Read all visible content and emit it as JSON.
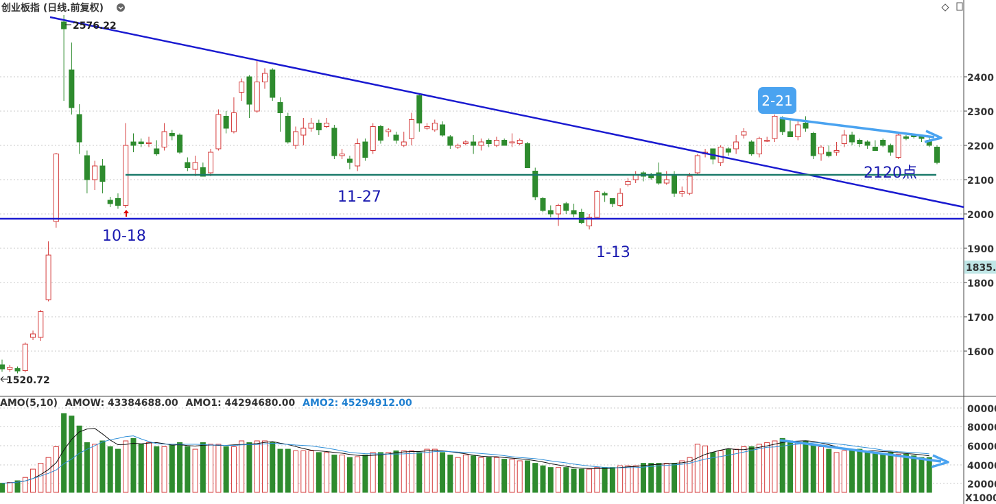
{
  "header": {
    "title": "创业板指 (日线.前复权)",
    "amo_label": "AMO(5,10)",
    "amow": "AMOW: 43384688.00",
    "amo1": "AMO1: 44294680.00",
    "amo2": "AMO2: 45294912.00"
  },
  "price_axis": {
    "ticks": [
      "2400",
      "2300",
      "2200",
      "2100",
      "2000",
      "1900",
      "1800",
      "1700",
      "1600"
    ],
    "current_value": "1835."
  },
  "volume_axis": {
    "ticks": [
      "00000",
      "80000",
      "60000",
      "40000",
      "20000"
    ],
    "unit": "X1000"
  },
  "annotations": {
    "high": "2576.22",
    "low": "1520.72",
    "d1": "10-18",
    "d2": "11-27",
    "d3": "1-13",
    "d4": "2-21",
    "level": "2120点"
  },
  "colors": {
    "up": "#d43a3a",
    "down": "#2e8b2e",
    "trendline": "#1a1ad0",
    "support": "#1a7a6a",
    "arrow": "#4aa3f0",
    "badge": "#4aa3f0",
    "ma1": "#111111",
    "ma2": "#2f8fd8"
  },
  "chart_data": {
    "type": "candlestick",
    "y_range": [
      1460,
      2640
    ],
    "candles": [
      [
        1560,
        1548,
        1575,
        1540
      ],
      [
        1547,
        1553,
        1560,
        1540
      ],
      [
        1549,
        1542,
        1555,
        1535
      ],
      [
        1543,
        1620,
        1625,
        1538
      ],
      [
        1640,
        1650,
        1660,
        1632
      ],
      [
        1640,
        1715,
        1720,
        1630
      ],
      [
        1750,
        1880,
        1920,
        1745
      ],
      [
        1978,
        2175,
        2178,
        1960
      ],
      [
        2560,
        2540,
        2580,
        2330
      ],
      [
        2420,
        2310,
        2500,
        2290
      ],
      [
        2290,
        2210,
        2320,
        2175
      ],
      [
        2170,
        2100,
        2185,
        2060
      ],
      [
        2100,
        2140,
        2155,
        2070
      ],
      [
        2140,
        2095,
        2160,
        2060
      ],
      [
        2040,
        2030,
        2050,
        2020
      ],
      [
        2045,
        2025,
        2060,
        2015
      ],
      [
        2025,
        2200,
        2265,
        2018
      ],
      [
        2210,
        2200,
        2235,
        2180
      ],
      [
        2210,
        2205,
        2220,
        2195
      ],
      [
        2205,
        2208,
        2225,
        2195
      ],
      [
        2190,
        2175,
        2215,
        2170
      ],
      [
        2195,
        2240,
        2265,
        2185
      ],
      [
        2235,
        2228,
        2245,
        2215
      ],
      [
        2230,
        2180,
        2235,
        2175
      ],
      [
        2150,
        2135,
        2165,
        2125
      ],
      [
        2130,
        2150,
        2170,
        2110
      ],
      [
        2135,
        2110,
        2150,
        2110
      ],
      [
        2120,
        2180,
        2190,
        2110
      ],
      [
        2190,
        2290,
        2305,
        2185
      ],
      [
        2285,
        2250,
        2300,
        2235
      ],
      [
        2240,
        2295,
        2340,
        2235
      ],
      [
        2355,
        2385,
        2395,
        2330
      ],
      [
        2400,
        2320,
        2405,
        2280
      ],
      [
        2300,
        2385,
        2450,
        2295
      ],
      [
        2385,
        2410,
        2425,
        2365
      ],
      [
        2420,
        2340,
        2425,
        2330
      ],
      [
        2325,
        2295,
        2340,
        2240
      ],
      [
        2285,
        2210,
        2295,
        2205
      ],
      [
        2200,
        2240,
        2255,
        2190
      ],
      [
        2230,
        2250,
        2280,
        2200
      ],
      [
        2250,
        2265,
        2280,
        2240
      ],
      [
        2265,
        2245,
        2275,
        2230
      ],
      [
        2255,
        2265,
        2280,
        2250
      ],
      [
        2250,
        2170,
        2260,
        2160
      ],
      [
        2170,
        2175,
        2190,
        2160
      ],
      [
        2160,
        2150,
        2170,
        2130
      ],
      [
        2140,
        2205,
        2220,
        2125
      ],
      [
        2210,
        2165,
        2220,
        2155
      ],
      [
        2185,
        2255,
        2265,
        2175
      ],
      [
        2255,
        2215,
        2260,
        2205
      ],
      [
        2240,
        2245,
        2250,
        2225
      ],
      [
        2230,
        2215,
        2240,
        2205
      ],
      [
        2200,
        2210,
        2240,
        2195
      ],
      [
        2220,
        2275,
        2295,
        2200
      ],
      [
        2345,
        2265,
        2350,
        2240
      ],
      [
        2250,
        2255,
        2265,
        2245
      ],
      [
        2245,
        2265,
        2275,
        2240
      ],
      [
        2260,
        2230,
        2270,
        2225
      ],
      [
        2225,
        2200,
        2230,
        2190
      ],
      [
        2195,
        2200,
        2205,
        2190
      ],
      [
        2205,
        2210,
        2215,
        2200
      ],
      [
        2210,
        2200,
        2230,
        2175
      ],
      [
        2200,
        2210,
        2220,
        2185
      ],
      [
        2215,
        2205,
        2220,
        2195
      ],
      [
        2200,
        2215,
        2225,
        2195
      ],
      [
        2215,
        2200,
        2220,
        2200
      ],
      [
        2210,
        2210,
        2235,
        2195
      ],
      [
        2205,
        2215,
        2220,
        2200
      ],
      [
        2205,
        2135,
        2210,
        2135
      ],
      [
        2125,
        2050,
        2135,
        2040
      ],
      [
        2045,
        2010,
        2050,
        2005
      ],
      [
        2010,
        2000,
        2025,
        1990
      ],
      [
        2000,
        2025,
        2030,
        1965
      ],
      [
        2030,
        2010,
        2035,
        2000
      ],
      [
        2010,
        2000,
        2030,
        1990
      ],
      [
        2005,
        1975,
        2015,
        1970
      ],
      [
        1965,
        1990,
        2000,
        1955
      ],
      [
        1990,
        2065,
        2070,
        1985
      ],
      [
        2060,
        2055,
        2065,
        2035
      ],
      [
        2045,
        2030,
        2045,
        2020
      ],
      [
        2025,
        2060,
        2075,
        2020
      ],
      [
        2085,
        2095,
        2105,
        2080
      ],
      [
        2100,
        2115,
        2125,
        2090
      ],
      [
        2120,
        2110,
        2125,
        2095
      ],
      [
        2115,
        2105,
        2120,
        2100
      ],
      [
        2120,
        2090,
        2150,
        2085
      ],
      [
        2090,
        2100,
        2125,
        2085
      ],
      [
        2115,
        2060,
        2125,
        2050
      ],
      [
        2060,
        2065,
        2080,
        2050
      ],
      [
        2060,
        2110,
        2120,
        2055
      ],
      [
        2120,
        2170,
        2175,
        2115
      ],
      [
        2175,
        2180,
        2190,
        2165
      ],
      [
        2190,
        2160,
        2190,
        2145
      ],
      [
        2150,
        2195,
        2200,
        2140
      ],
      [
        2190,
        2180,
        2195,
        2170
      ],
      [
        2190,
        2210,
        2230,
        2175
      ],
      [
        2230,
        2240,
        2250,
        2220
      ],
      [
        2210,
        2175,
        2215,
        2170
      ],
      [
        2175,
        2220,
        2225,
        2165
      ],
      [
        2215,
        2215,
        2225,
        2210
      ],
      [
        2220,
        2285,
        2290,
        2210
      ],
      [
        2280,
        2240,
        2285,
        2230
      ],
      [
        2240,
        2225,
        2275,
        2225
      ],
      [
        2225,
        2260,
        2270,
        2215
      ],
      [
        2265,
        2250,
        2285,
        2240
      ],
      [
        2235,
        2170,
        2240,
        2160
      ],
      [
        2175,
        2195,
        2200,
        2155
      ],
      [
        2180,
        2170,
        2200,
        2165
      ],
      [
        2180,
        2185,
        2210,
        2170
      ],
      [
        2205,
        2230,
        2245,
        2195
      ],
      [
        2230,
        2210,
        2240,
        2200
      ],
      [
        2215,
        2205,
        2220,
        2195
      ],
      [
        2210,
        2200,
        2215,
        2190
      ],
      [
        2195,
        2185,
        2215,
        2185
      ],
      [
        2215,
        2200,
        2220,
        2195
      ],
      [
        2200,
        2180,
        2205,
        2170
      ],
      [
        2165,
        2230,
        2235,
        2160
      ],
      [
        2225,
        2220,
        2230,
        2215
      ],
      [
        2230,
        2225,
        2235,
        2220
      ],
      [
        2225,
        2220,
        2230,
        2210
      ],
      [
        2215,
        2200,
        2225,
        2195
      ],
      [
        2195,
        2150,
        2200,
        2145
      ]
    ],
    "amo": [
      11,
      12,
      14,
      18,
      28,
      35,
      42,
      55,
      95,
      92,
      80,
      60,
      58,
      62,
      55,
      52,
      62,
      65,
      58,
      60,
      55,
      55,
      57,
      60,
      55,
      52,
      60,
      58,
      58,
      55,
      55,
      62,
      60,
      62,
      62,
      60,
      52,
      52,
      50,
      50,
      50,
      48,
      48,
      45,
      45,
      42,
      43,
      45,
      48,
      48,
      48,
      50,
      50,
      50,
      48,
      52,
      52,
      48,
      45,
      42,
      45,
      44,
      42,
      42,
      42,
      40,
      40,
      38,
      38,
      35,
      32,
      30,
      30,
      30,
      28,
      28,
      28,
      30,
      30,
      30,
      32,
      32,
      32,
      35,
      35,
      35,
      35,
      35,
      38,
      42,
      58,
      56,
      48,
      50,
      52,
      52,
      55,
      55,
      58,
      60,
      62,
      65,
      62,
      60,
      62,
      58,
      55,
      52,
      48,
      50,
      50,
      52,
      50,
      48,
      46,
      48,
      46,
      46,
      44,
      42,
      42
    ]
  }
}
